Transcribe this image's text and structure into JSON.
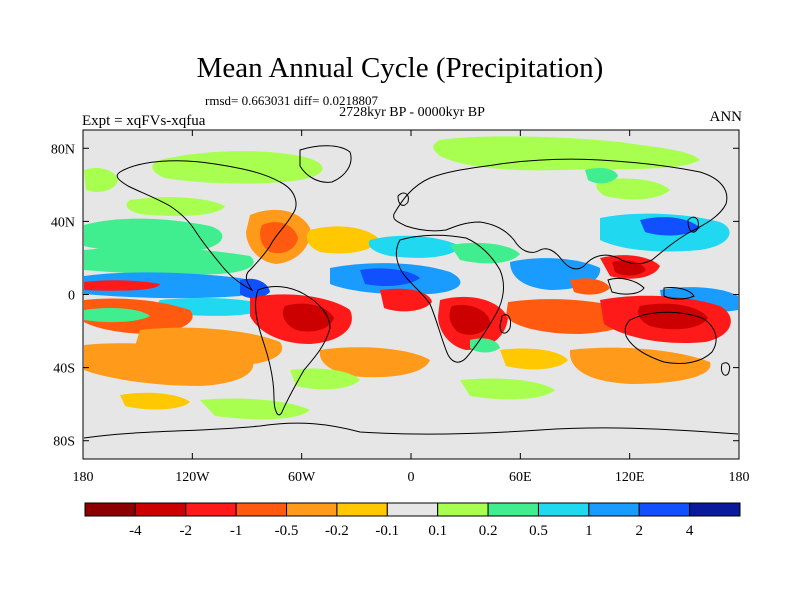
{
  "title": "Mean Annual Cycle (Precipitation)",
  "stats": "rmsd= 0.663031 diff= 0.0218807",
  "subtitle": "2728kyr BP - 0000kyr BP",
  "left_label": "Expt = xqFVs-xqfua",
  "right_label": "ANN",
  "map": {
    "lon_range": [
      -180,
      180
    ],
    "lat_range": [
      -90,
      90
    ],
    "x_ticks": [
      {
        "value": -180,
        "label": "180"
      },
      {
        "value": -120,
        "label": "120W"
      },
      {
        "value": -60,
        "label": "60W"
      },
      {
        "value": 0,
        "label": "0"
      },
      {
        "value": 60,
        "label": "60E"
      },
      {
        "value": 120,
        "label": "120E"
      },
      {
        "value": 180,
        "label": "180"
      }
    ],
    "y_ticks": [
      {
        "value": 80,
        "label": "80N"
      },
      {
        "value": 40,
        "label": "40N"
      },
      {
        "value": 0,
        "label": "0"
      },
      {
        "value": -40,
        "label": "40S"
      },
      {
        "value": -80,
        "label": "80S"
      }
    ]
  },
  "colorbar": {
    "levels": [
      "-4",
      "-2",
      "-1",
      "-0.5",
      "-0.2",
      "-0.1",
      "0.1",
      "0.2",
      "0.5",
      "1",
      "2",
      "4"
    ],
    "colors": [
      "#8b0000",
      "#cc0000",
      "#ff1a1a",
      "#ff5a10",
      "#ff9a1a",
      "#ffc800",
      "#e6e6e6",
      "#a8ff50",
      "#40ee90",
      "#20d8f0",
      "#1a9cff",
      "#1050ff",
      "#0a1a9a"
    ]
  },
  "colors": {
    "neutral": "#e6e6e6",
    "coast": "#000000"
  }
}
